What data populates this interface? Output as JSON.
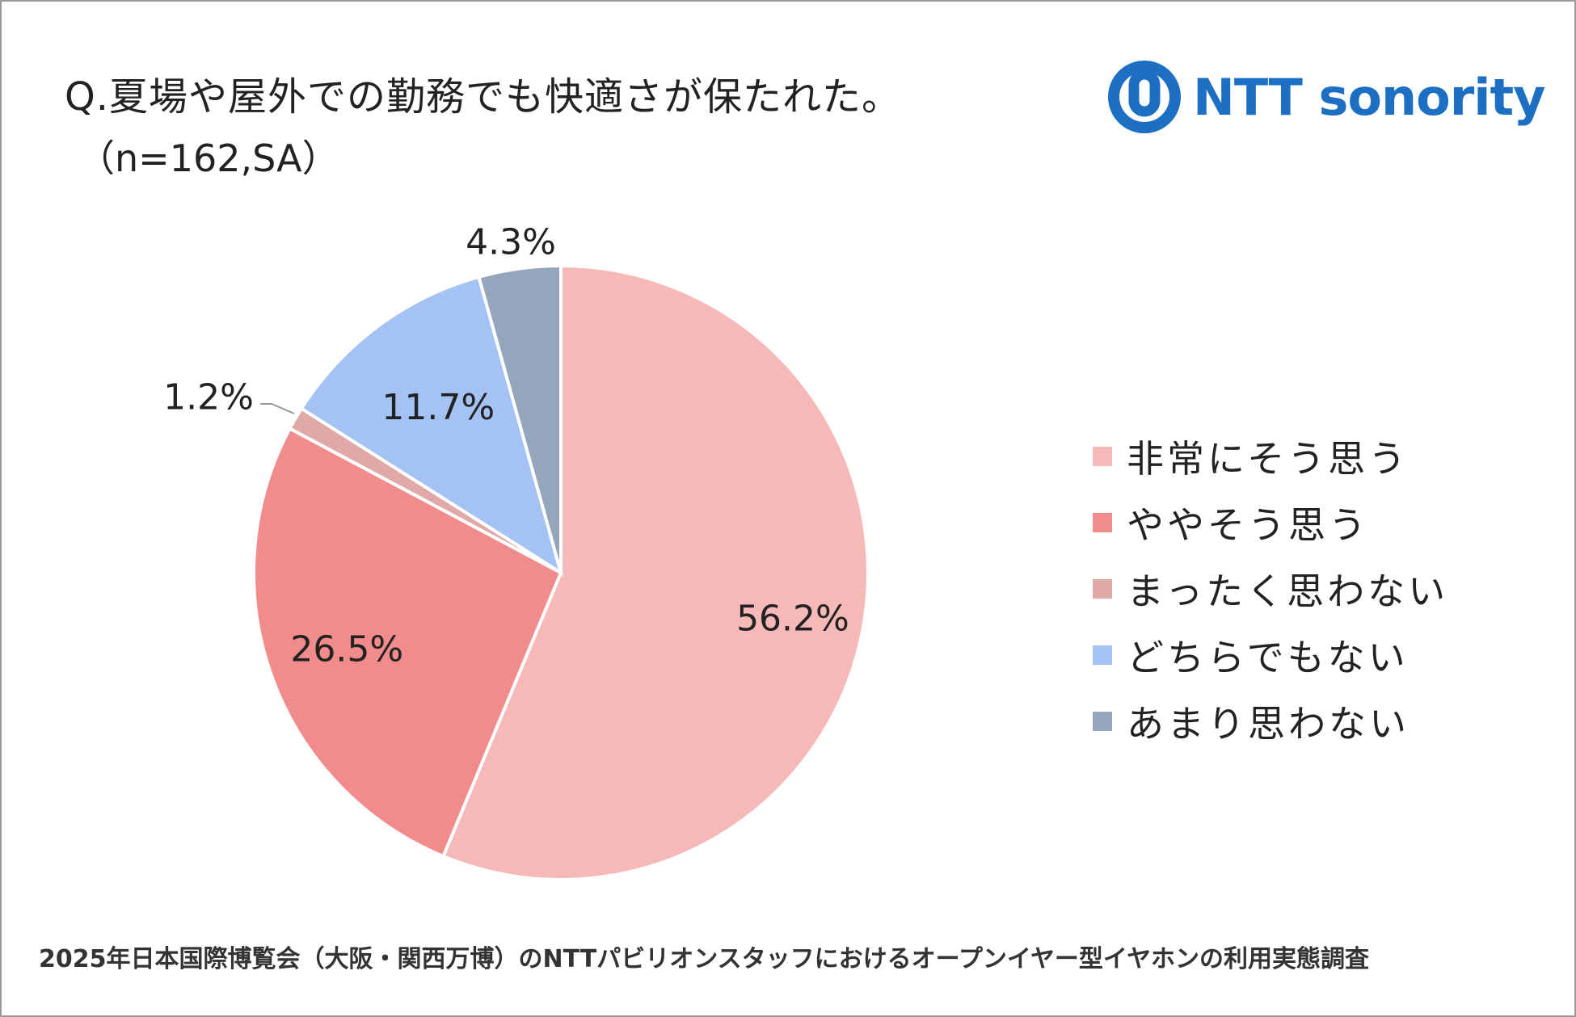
{
  "header": {
    "question": "Q.夏場や屋外での勤務でも快適さが保たれた。",
    "sample": "（n=162,SA）"
  },
  "logo": {
    "text": "NTT sonority",
    "icon": "ntt-logo-icon",
    "color": "#1c6fc2"
  },
  "footer": {
    "text": "2025年日本国際博覧会（大阪・関西万博）のNTTパビリオンスタッフにおけるオープンイヤー型イヤホンの利用実態調査"
  },
  "chart_data": {
    "type": "pie",
    "title": "Q.夏場や屋外での勤務でも快適さが保たれた。",
    "subtitle": "（n=162,SA）",
    "legend_position": "right",
    "slices": [
      {
        "label": "非常にそう思う",
        "value": 56.2,
        "display": "56.2%",
        "color": "#f7b8b8"
      },
      {
        "label": "ややそう思う",
        "value": 26.5,
        "display": "26.5%",
        "color": "#f28b8c"
      },
      {
        "label": "まったく思わない",
        "value": 1.2,
        "display": "1.2%",
        "color": "#e0a8a6"
      },
      {
        "label": "どちらでもない",
        "value": 11.7,
        "display": "11.7%",
        "color": "#a4c2f4"
      },
      {
        "label": "あまり思わない",
        "value": 4.3,
        "display": "4.3%",
        "color": "#94a6bb"
      }
    ],
    "legend_order": [
      0,
      1,
      2,
      3,
      4
    ]
  }
}
